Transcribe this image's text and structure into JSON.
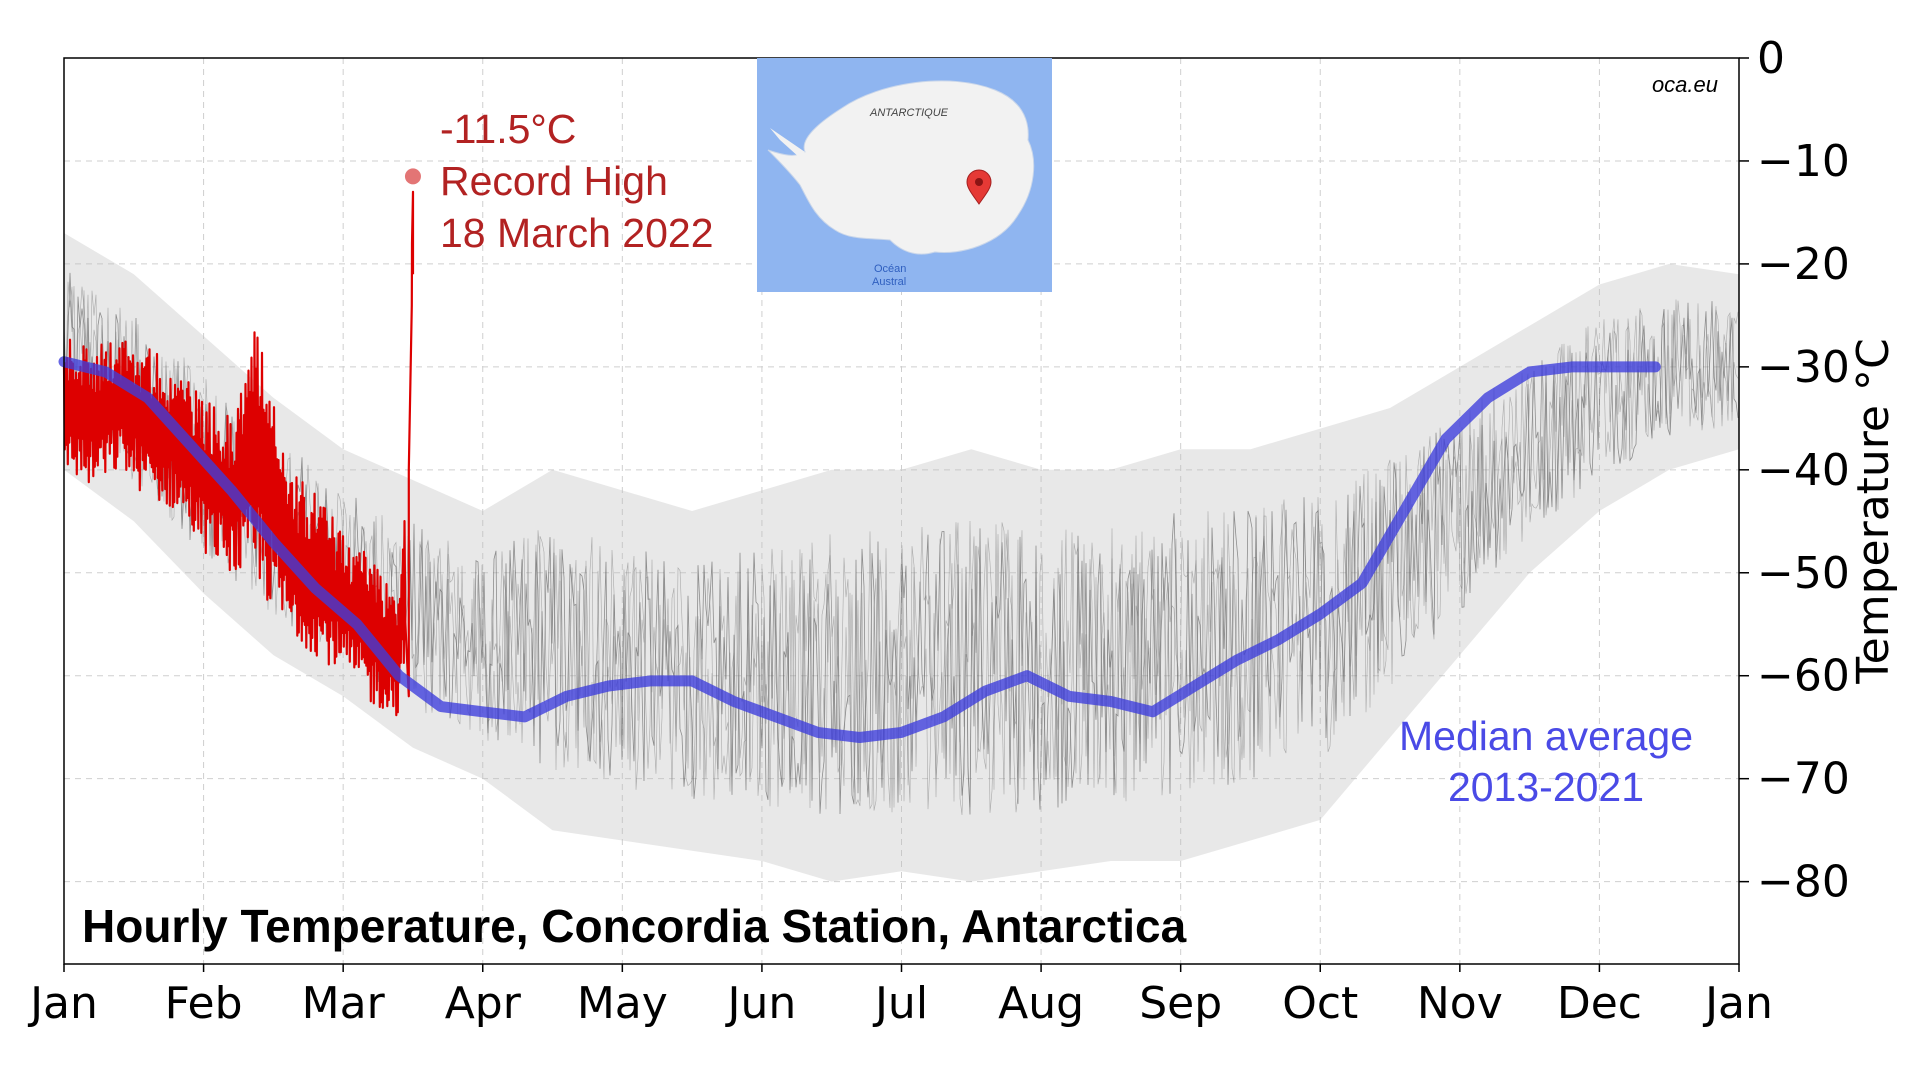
{
  "source": "oca.eu",
  "chart_data": {
    "type": "line",
    "title": "Hourly Temperature, Concordia Station, Antarctica",
    "xlabel": "",
    "ylabel": "Temperature °C",
    "ylim": [
      -88,
      0
    ],
    "xlim": [
      1,
      13
    ],
    "grid": true,
    "x_tick_labels": [
      "Jan",
      "Feb",
      "Mar",
      "Apr",
      "May",
      "Jun",
      "Jul",
      "Aug",
      "Sep",
      "Oct",
      "Nov",
      "Dec",
      "Jan"
    ],
    "y_ticks": [
      0,
      -10,
      -20,
      -30,
      -40,
      -50,
      -60,
      -70,
      -80
    ],
    "y_tick_labels": [
      "0",
      "−10",
      "−20",
      "−30",
      "−40",
      "−50",
      "−60",
      "−70",
      "−80"
    ],
    "series": [
      {
        "name": "",
        "style": "hourly temperatures 2013-2021",
        "color": "#333333",
        "x": [
          1.0,
          1.5,
          2.0,
          2.5,
          3.0,
          3.5,
          4.0,
          4.5,
          5.0,
          5.5,
          6.0,
          6.5,
          7.0,
          7.5,
          8.0,
          8.5,
          9.0,
          9.5,
          10.0,
          10.5,
          11.0,
          11.5,
          12.0,
          12.5,
          13.0
        ],
        "upper": [
          -17,
          -21,
          -27,
          -33,
          -38,
          -41,
          -44,
          -40,
          -42,
          -44,
          -42,
          -40,
          -40,
          -38,
          -40,
          -40,
          -38,
          -38,
          -36,
          -34,
          -30,
          -26,
          -22,
          -20,
          -21
        ],
        "lower": [
          -40,
          -45,
          -52,
          -58,
          -62,
          -67,
          -70,
          -75,
          -76,
          -77,
          -78,
          -80,
          -79,
          -80,
          -79,
          -78,
          -78,
          -76,
          -74,
          -66,
          -58,
          -50,
          -44,
          -40,
          -38
        ]
      },
      {
        "name": "Median average 2013-2021",
        "color": "#3c3cdc",
        "x": [
          1.0,
          1.3,
          1.6,
          1.9,
          2.2,
          2.5,
          2.8,
          3.1,
          3.4,
          3.7,
          4.0,
          4.3,
          4.6,
          4.9,
          5.2,
          5.5,
          5.8,
          6.1,
          6.4,
          6.7,
          7.0,
          7.3,
          7.6,
          7.9,
          8.2,
          8.5,
          8.8,
          9.1,
          9.4,
          9.7,
          10.0,
          10.3,
          10.6,
          10.9,
          11.2,
          11.5,
          11.8,
          12.1,
          12.4
        ],
        "y": [
          -29.5,
          -30.5,
          -33,
          -37.5,
          -42,
          -47,
          -51.5,
          -55,
          -60,
          -63,
          -63.5,
          -64,
          -62,
          -61,
          -60.5,
          -60.5,
          -62.5,
          -64,
          -65.5,
          -66,
          -65.5,
          -64,
          -61.5,
          -60,
          -62,
          -62.5,
          -63.5,
          -61,
          -58.5,
          -56.5,
          -54,
          -51,
          -44,
          -37,
          -33,
          -30.5,
          -30,
          -30,
          -30
        ]
      },
      {
        "name": "2022",
        "color": "#dd0000",
        "x": [
          1.0,
          1.2,
          1.4,
          1.6,
          1.8,
          2.0,
          2.2,
          2.4,
          2.6,
          2.8,
          3.0,
          3.2,
          3.4,
          3.45,
          3.5,
          3.5
        ],
        "upper": [
          -27,
          -28,
          -27,
          -28,
          -30,
          -33,
          -35,
          -24,
          -40,
          -42,
          -46,
          -48,
          -52,
          -40,
          -20,
          -11.5
        ],
        "lower": [
          -40,
          -42,
          -40,
          -43,
          -44,
          -48,
          -50,
          -52,
          -56,
          -58,
          -60,
          -63,
          -64,
          -55,
          -30,
          -11.5
        ]
      }
    ],
    "annotations": [
      {
        "text": [
          "-11.5°C",
          "Record High",
          "18 March 2022"
        ],
        "x": 3.5,
        "y": -11.5,
        "color": "#b22222"
      },
      {
        "text": [
          "Median average",
          "2013-2021"
        ],
        "color": "#4a4ae6"
      }
    ],
    "inset_map": {
      "label": "ANTARCTIQUE",
      "ocean_label": [
        "Océan",
        "Austral"
      ],
      "marker_color": "#e53935"
    }
  }
}
